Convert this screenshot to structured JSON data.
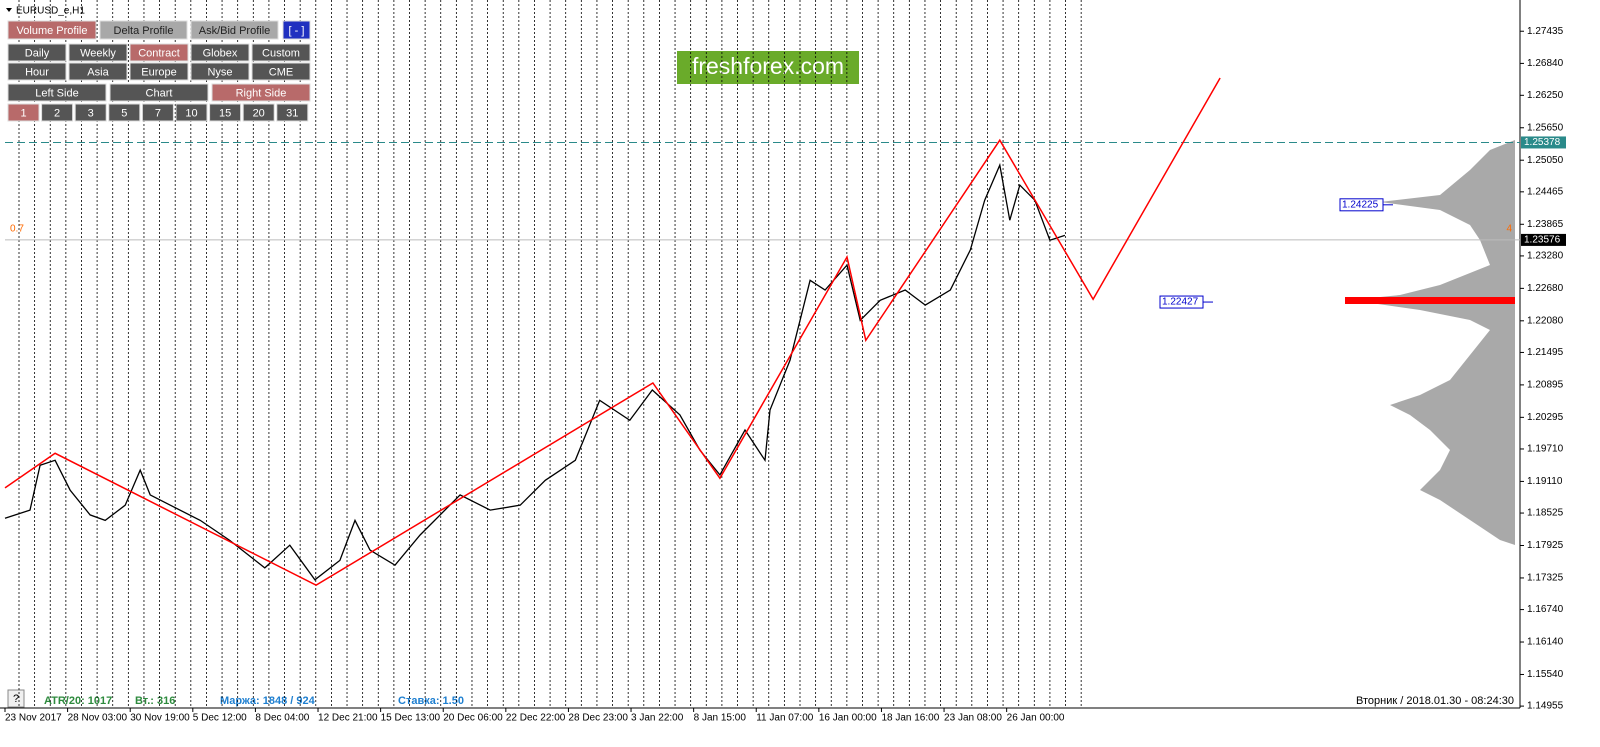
{
  "header": {
    "symbol": "EURUSD_e,H1"
  },
  "toolbar": {
    "rows": [
      [
        "Volume Profile",
        "Delta Profile",
        "Ask/Bid Profile",
        "[ - ]"
      ],
      [
        "Daily",
        "Weekly",
        "Contract",
        "Globex",
        "Custom"
      ],
      [
        "Hour",
        "Asia",
        "Europe",
        "Nyse",
        "CME"
      ],
      [
        "Left Side",
        "Chart",
        "Right Side"
      ],
      [
        "1",
        "2",
        "3",
        "5",
        "7",
        "10",
        "15",
        "20",
        "31"
      ]
    ],
    "active": [
      [
        0
      ],
      [
        2
      ],
      [],
      [
        2
      ],
      [
        0
      ]
    ]
  },
  "watermark": "freshforex.com",
  "chart": {
    "type": "line",
    "xlim": [
      0,
      24.12
    ],
    "ylim": [
      1.1492,
      1.2792
    ],
    "x_labels": [
      "23 Nov 2017",
      "28 Nov 03:00",
      "30 Nov 19:00",
      "5 Dec 12:00",
      "8 Dec 04:00",
      "12 Dec 21:00",
      "15 Dec 13:00",
      "20 Dec 06:00",
      "22 Dec 22:00",
      "28 Dec 23:00",
      "3 Jan 22:00",
      "8 Jan 15:00",
      "11 Jan 07:00",
      "16 Jan 00:00",
      "18 Jan 16:00",
      "23 Jan 08:00",
      "26 Jan 00:00"
    ],
    "yticks": [
      1.27435,
      {
        "value": 1.2684,
        "label": "1.26840"
      },
      {
        "value": 1.2625,
        "label": "1.26250"
      },
      {
        "value": 1.2565,
        "label": "1.25650"
      },
      {
        "value": 1.2505,
        "label": "1.25050"
      },
      1.24465,
      1.23865,
      {
        "value": 1.2328,
        "label": "1.23280"
      },
      {
        "value": 1.2268,
        "label": "1.22680"
      },
      {
        "value": 1.2208,
        "label": "1.22080"
      },
      1.21495,
      1.20895,
      1.20295,
      {
        "value": 1.1971,
        "label": "1.19710"
      },
      {
        "value": 1.1911,
        "label": "1.19110"
      },
      1.18525,
      1.17925,
      1.17325,
      {
        "value": 1.1674,
        "label": "1.16740"
      },
      {
        "value": 1.1614,
        "label": "1.16140"
      },
      {
        "value": 1.1554,
        "label": "1.15540"
      },
      1.14955
    ],
    "price": {
      "color": "#000000",
      "x": [
        0,
        0.4,
        0.56,
        0.8,
        1.04,
        1.36,
        1.6,
        1.92,
        2.16,
        2.32,
        2.64,
        3.12,
        3.59,
        4.15,
        4.55,
        4.95,
        5.35,
        5.59,
        5.83,
        6.23,
        6.63,
        7.27,
        7.75,
        8.23,
        8.63,
        9.11,
        9.5,
        9.98,
        10.34,
        10.78,
        11.1,
        11.42,
        11.82,
        12.14,
        12.22,
        12.54,
        12.86,
        13.1,
        13.45,
        13.66,
        13.98,
        14.38,
        14.7,
        15.1,
        15.42,
        15.65,
        15.89,
        16.05,
        16.21,
        16.45,
        16.69,
        16.93
      ],
      "y": [
        1.1843,
        1.1858,
        1.1941,
        1.195,
        1.1895,
        1.1849,
        1.1839,
        1.1867,
        1.1932,
        1.1886,
        1.1867,
        1.1839,
        1.1802,
        1.1751,
        1.1793,
        1.1729,
        1.1765,
        1.1839,
        1.1784,
        1.1756,
        1.1812,
        1.1886,
        1.1858,
        1.1867,
        1.1913,
        1.195,
        1.2061,
        1.2024,
        1.208,
        1.2034,
        1.1969,
        1.1923,
        1.2006,
        1.195,
        1.2043,
        1.2135,
        1.2283,
        1.2265,
        1.2311,
        1.2209,
        1.2246,
        1.2265,
        1.2237,
        1.2265,
        1.2339,
        1.2431,
        1.2496,
        1.2394,
        1.2459,
        1.2431,
        1.2357,
        1.2366
      ]
    },
    "zigzag": {
      "color": "#ff0000",
      "x": [
        0,
        0.8,
        4.97,
        10.35,
        11.42,
        13.45,
        13.75,
        15.89,
        17.38,
        19.41
      ],
      "y": [
        1.1899,
        1.1963,
        1.1719,
        1.2093,
        1.1917,
        1.2326,
        1.2172,
        1.2542,
        1.2248,
        1.2657
      ]
    },
    "high_level": 1.25378,
    "current_price": 1.23576,
    "profile_labels": [
      {
        "value": 1.24225,
        "label": "1.24225"
      },
      {
        "value": 1.22427,
        "label": "1.22427"
      }
    ],
    "left_marker": "0.7",
    "right_marker": "4"
  },
  "status": {
    "help": "?",
    "atr": "ATR/20: 1017",
    "vt": "Вт.: 316",
    "margin": "Маржа: 1848 / 924",
    "rate": "Ставка: 1.50",
    "datetime": "Вторник  /  2018.01.30  -  08:24:30"
  }
}
